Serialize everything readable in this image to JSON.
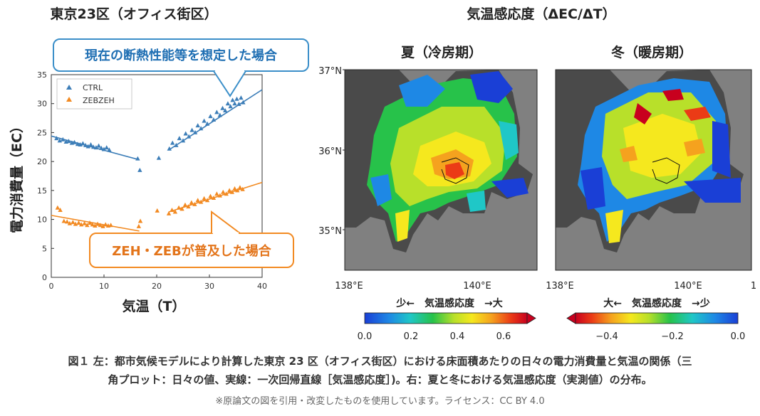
{
  "left_title": "東京23区（オフィス街区）",
  "right_title": "気温感応度（ΔEC/ΔT）",
  "callout_current": "現在の断熱性能等を想定した場合",
  "callout_zeh": "ZEH・ZEBが普及した場合",
  "map_summer_title": "夏（冷房期）",
  "map_winter_title": "冬（暖房期）",
  "colors": {
    "ctrl": "#3d7eb8",
    "zebzeh": "#f28a22",
    "callout_blue": "#3b8fc9",
    "callout_orange": "#f28a22",
    "ocean": "#808080",
    "cb_blue": "#1a3fd6",
    "cb_red": "#c8001e"
  },
  "map_axes": {
    "lat_ticks": [
      "37°N",
      "36°N",
      "35°N"
    ],
    "lon_ticks": [
      "138°E",
      "140°E",
      "138°E",
      "140°E",
      "1"
    ]
  },
  "colorbar_summer": {
    "label": "少←　気温感応度　→大",
    "ticks": [
      "0.0",
      "0.2",
      "0.4",
      "0.6"
    ]
  },
  "colorbar_winter": {
    "label": "大←　気温感応度　→少",
    "ticks": [
      "−0.4",
      "−0.2",
      "0.0"
    ]
  },
  "caption_line1": "図１ 左：都市気候モデルにより計算した東京 23 区（オフィス街区）における床面積あたりの日々の電力消費量と気温の関係（三",
  "caption_line2": "角プロット：日々の値、実線：一次回帰直線［気温感応度］)。右：夏と冬における気温感応度（実測値）の分布。",
  "caption_note": "※原論文の図を引用・改変したものを使用しています。ライセンス：CC BY 4.0",
  "chart_data": {
    "type": "scatter",
    "title": "東京23区（オフィス街区）",
    "xlabel": "気温（T）",
    "ylabel": "電力消費量（EC）",
    "xlim": [
      0,
      40
    ],
    "ylim": [
      0,
      35
    ],
    "xticks": [
      0,
      10,
      20,
      30,
      40
    ],
    "yticks": [
      0,
      5,
      10,
      15,
      20,
      25,
      30,
      35
    ],
    "legend": [
      "CTRL",
      "ZEBZEH"
    ],
    "legend_position": "top-left",
    "series": [
      {
        "name": "CTRL",
        "points": [
          [
            1,
            24.0
          ],
          [
            1.6,
            23.6
          ],
          [
            2.2,
            23.8
          ],
          [
            2.8,
            23.4
          ],
          [
            3.3,
            23.5
          ],
          [
            3.9,
            23.2
          ],
          [
            4.4,
            23.3
          ],
          [
            5.0,
            23.0
          ],
          [
            5.5,
            22.9
          ],
          [
            6.0,
            23.1
          ],
          [
            6.5,
            22.8
          ],
          [
            7.0,
            22.6
          ],
          [
            7.5,
            22.9
          ],
          [
            8.0,
            22.5
          ],
          [
            8.5,
            22.4
          ],
          [
            9.0,
            22.7
          ],
          [
            9.5,
            22.3
          ],
          [
            10.0,
            22.1
          ],
          [
            10.5,
            22.4
          ],
          [
            11.0,
            22.0
          ],
          [
            16.8,
            18.5
          ],
          [
            16.4,
            20.5
          ],
          [
            20.4,
            20.6
          ],
          [
            22.4,
            22.2
          ],
          [
            23.0,
            23.2
          ],
          [
            23.7,
            22.8
          ],
          [
            24.3,
            24.0
          ],
          [
            25.0,
            23.6
          ],
          [
            25.5,
            24.8
          ],
          [
            26.1,
            24.3
          ],
          [
            26.7,
            25.4
          ],
          [
            27.3,
            25.0
          ],
          [
            27.8,
            26.2
          ],
          [
            28.4,
            25.7
          ],
          [
            29.0,
            27.0
          ],
          [
            29.6,
            26.5
          ],
          [
            30.2,
            27.8
          ],
          [
            30.8,
            27.2
          ],
          [
            31.4,
            28.5
          ],
          [
            32.0,
            28.0
          ],
          [
            32.5,
            29.2
          ],
          [
            33.0,
            28.8
          ],
          [
            33.5,
            30.0
          ],
          [
            34.0,
            29.5
          ],
          [
            34.4,
            30.6
          ],
          [
            34.8,
            30.0
          ],
          [
            35.2,
            30.8
          ],
          [
            35.6,
            29.9
          ],
          [
            36.0,
            31.0
          ],
          [
            36.4,
            30.2
          ]
        ],
        "regression": [
          [
            0,
            24.4
          ],
          [
            16.7,
            20.3
          ],
          [
            22.3,
            22.0
          ],
          [
            40,
            32.4
          ]
        ]
      },
      {
        "name": "ZEBZEH",
        "points": [
          [
            1.2,
            12.0
          ],
          [
            1.7,
            11.6
          ],
          [
            2.4,
            9.7
          ],
          [
            3.0,
            9.6
          ],
          [
            3.5,
            9.3
          ],
          [
            4.1,
            9.5
          ],
          [
            4.6,
            9.2
          ],
          [
            5.2,
            9.4
          ],
          [
            5.7,
            9.1
          ],
          [
            6.3,
            9.3
          ],
          [
            6.8,
            9.0
          ],
          [
            7.3,
            9.4
          ],
          [
            7.8,
            9.1
          ],
          [
            8.3,
            8.9
          ],
          [
            8.8,
            9.2
          ],
          [
            9.3,
            9.0
          ],
          [
            9.8,
            8.8
          ],
          [
            10.3,
            9.1
          ],
          [
            10.8,
            8.9
          ],
          [
            11.3,
            9.0
          ],
          [
            16.6,
            8.8
          ],
          [
            16.9,
            9.7
          ],
          [
            20.1,
            11.5
          ],
          [
            22.3,
            11.0
          ],
          [
            22.9,
            11.6
          ],
          [
            23.5,
            11.3
          ],
          [
            24.2,
            12.0
          ],
          [
            24.8,
            11.8
          ],
          [
            25.4,
            12.5
          ],
          [
            26.0,
            12.2
          ],
          [
            26.6,
            12.9
          ],
          [
            27.2,
            12.6
          ],
          [
            27.8,
            13.3
          ],
          [
            28.4,
            13.0
          ],
          [
            29.0,
            13.6
          ],
          [
            29.6,
            13.3
          ],
          [
            30.2,
            14.0
          ],
          [
            30.8,
            13.7
          ],
          [
            31.4,
            14.4
          ],
          [
            32.0,
            14.1
          ],
          [
            32.6,
            14.7
          ],
          [
            33.2,
            14.4
          ],
          [
            33.8,
            15.0
          ],
          [
            34.3,
            14.7
          ],
          [
            34.8,
            15.3
          ],
          [
            35.3,
            15.0
          ],
          [
            35.8,
            15.5
          ],
          [
            36.3,
            15.2
          ]
        ],
        "regression": [
          [
            0,
            10.7
          ],
          [
            16.7,
            8.0
          ],
          [
            22.3,
            11.3
          ],
          [
            40,
            16.4
          ]
        ]
      }
    ]
  }
}
